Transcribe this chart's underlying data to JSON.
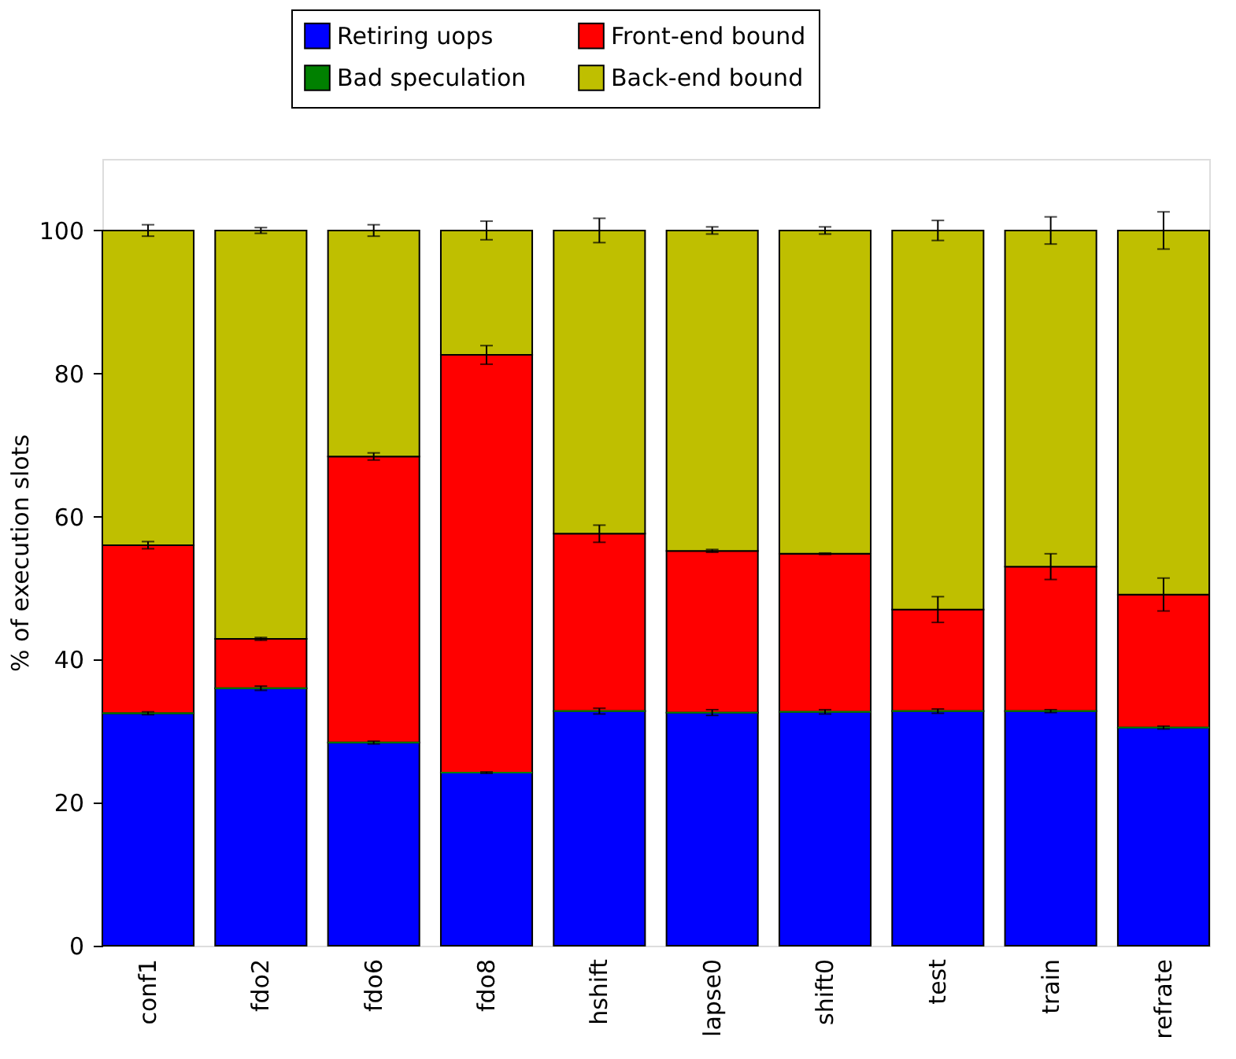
{
  "chart_data": {
    "type": "bar",
    "stacked": true,
    "ylabel": "% of execution slots",
    "categories": [
      "conf1",
      "fdo2",
      "fdo6",
      "fdo8",
      "hshift",
      "lapse0",
      "shift0",
      "test",
      "train",
      "refrate"
    ],
    "series": [
      {
        "name": "Retiring uops",
        "color": "#0000ff",
        "values": [
          32.5,
          36.0,
          28.4,
          24.2,
          32.8,
          32.6,
          32.7,
          32.8,
          32.8,
          30.5
        ],
        "errors": [
          0.2,
          0.3,
          0.2,
          0.1,
          0.4,
          0.4,
          0.3,
          0.3,
          0.2,
          0.2
        ]
      },
      {
        "name": "Bad speculation",
        "color": "#008000",
        "values": [
          0,
          0,
          0,
          0,
          0,
          0,
          0,
          0,
          0,
          0
        ]
      },
      {
        "name": "Front-end bound",
        "color": "#ff0000",
        "values": [
          23.5,
          6.9,
          40.0,
          58.4,
          24.8,
          22.6,
          22.1,
          14.2,
          20.2,
          18.6
        ],
        "errors": [
          0.5,
          0.2,
          0.5,
          1.3,
          1.2,
          0.2,
          0.1,
          1.8,
          1.8,
          2.3
        ]
      },
      {
        "name": "Back-end bound",
        "color": "#bfbf00",
        "values": [
          44.0,
          57.1,
          31.6,
          17.4,
          42.4,
          44.8,
          45.2,
          53.0,
          47.0,
          50.9
        ],
        "errors": [
          0.8,
          0.4,
          0.8,
          1.3,
          1.7,
          0.5,
          0.5,
          1.4,
          1.9,
          2.6
        ]
      }
    ],
    "ylim": [
      0,
      110
    ],
    "yticks": [
      0,
      20,
      40,
      60,
      80,
      100
    ],
    "grid": false,
    "legend": "top"
  }
}
